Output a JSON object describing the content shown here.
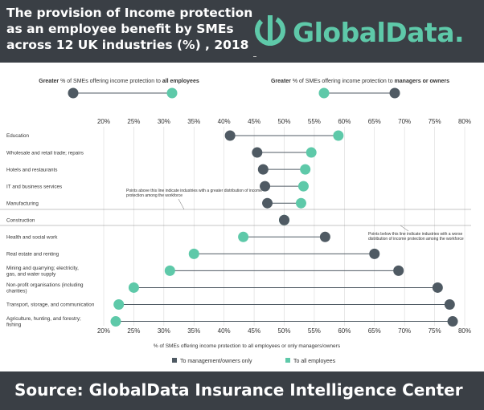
{
  "header": {
    "title": "The provision of Income protection as an employee benefit by SMEs across 12 UK industries (%) , 2018",
    "logo_text": "GlobalData."
  },
  "top_legend": {
    "left": {
      "bold_prefix": "Greater",
      "text": " % of SMEs offering income protection to ",
      "bold_suffix": "all employees"
    },
    "right": {
      "bold_prefix": "Greater",
      "text": " % of SMEs offering income protection to ",
      "bold_suffix": "managers or owners"
    }
  },
  "annotations": {
    "above": "Points above this line indicate industries with a greater distribution of income protection among the workforce",
    "below": "Points below this line indicate industries with a worse distribution of income protection among the workforce"
  },
  "footer": {
    "source": "Source:  GlobalData Insurance Intelligence Center"
  },
  "colors": {
    "management": "#4f5a63",
    "employees": "#5ec9a9",
    "header_bg": "#3a3f45"
  },
  "chart_data": {
    "type": "dumbbell",
    "xlabel": "% of SMEs offering income protection to all employees or only managers/owners",
    "xlim": [
      20,
      80
    ],
    "ticks": [
      "20%",
      "25%",
      "30%",
      "35%",
      "40%",
      "45%",
      "50%",
      "55%",
      "60%",
      "65%",
      "70%",
      "75%",
      "80%"
    ],
    "tick_values": [
      20,
      25,
      30,
      35,
      40,
      45,
      50,
      55,
      60,
      65,
      70,
      75,
      80
    ],
    "categories": [
      "Education",
      "Wholesale and retail trade; repairs",
      "Hotels and restaurants",
      "IT and business services",
      "Manufacturing",
      "Construction",
      "Health and social work",
      "Real estate and renting",
      "Mining and quarrying; electricity, gas, and water supply",
      "Non-profit organisations (including charities)",
      "Transport, storage, and communication",
      "Agriculture, hunting, and forestry; fishing"
    ],
    "series": [
      {
        "name": "To management/owners only",
        "values": [
          41,
          45.5,
          46.5,
          46.8,
          47.2,
          50,
          56.8,
          65,
          69,
          75.5,
          77.5,
          78
        ]
      },
      {
        "name": "To all employees",
        "values": [
          59,
          54.5,
          53.5,
          53.2,
          52.8,
          50,
          43.2,
          35,
          31,
          25,
          22.5,
          22
        ]
      }
    ],
    "legend": [
      "To management/owners only",
      "To all employees"
    ]
  }
}
